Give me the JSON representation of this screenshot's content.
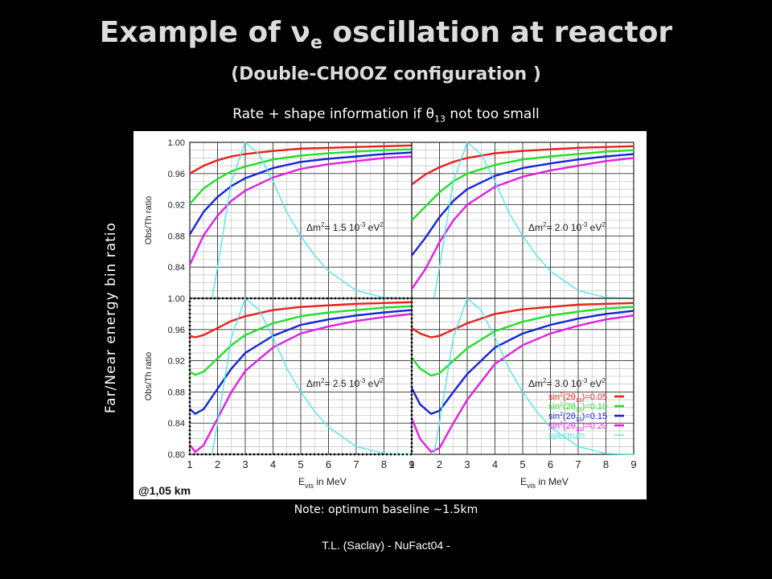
{
  "slide": {
    "title_pre": "Example of ",
    "title_nu": "ν",
    "title_sub": "e",
    "title_post": " oscillation at reactor",
    "subtitle": "(Double-CHOOZ configuration )",
    "rate_pre": "Rate + shape information if ",
    "rate_theta": "θ",
    "rate_sub": "13",
    "rate_post": " not too small",
    "side_label": "Far/Near energy bin ratio",
    "note": "Note: optimum baseline ~1.5km",
    "footer": "T.L. (Saclay) - NuFact04 -"
  },
  "colors": {
    "background": "#000000",
    "series_red": "#e8201c",
    "series_green": "#22e02a",
    "series_blue": "#1525d8",
    "series_magenta": "#e020e0",
    "spectrum": "#4fe6ea"
  },
  "chart_data": {
    "type": "line",
    "ylabel": "Obs/Th ratio",
    "xlabel_main": "E",
    "xlabel_sub": "vis",
    "xlabel_post": " in MeV",
    "xlim": [
      1,
      9
    ],
    "ylim": [
      0.8,
      1.0
    ],
    "yticks": [
      "0.80",
      "0.84",
      "0.88",
      "0.92",
      "0.96",
      "1.00"
    ],
    "xticks": [
      "1",
      "2",
      "3",
      "4",
      "5",
      "6",
      "7",
      "8",
      "9"
    ],
    "baseline_label": "@1,05 km",
    "legend": [
      {
        "pre": "sin",
        "sup": "2",
        "mid": "(2θ",
        "sub": "13",
        "post": ")=0.05",
        "color": "#e8201c"
      },
      {
        "pre": "sin",
        "sup": "2",
        "mid": "(2θ",
        "sub": "13",
        "post": ")=0.10",
        "color": "#22e02a"
      },
      {
        "pre": "sin",
        "sup": "2",
        "mid": "(2θ",
        "sub": "13",
        "post": ")=0.15",
        "color": "#1525d8"
      },
      {
        "pre": "sin",
        "sup": "2",
        "mid": "(2θ",
        "sub": "13",
        "post": ")=0.20",
        "color": "#e020e0"
      },
      {
        "pre": "spectrum",
        "sup": "",
        "mid": "",
        "sub": "",
        "post": "",
        "color": "#4fe6ea"
      }
    ],
    "panels": [
      {
        "dm_label": {
          "pre": "Δm",
          "sup1": "2",
          "mid": "= 1.5 10",
          "sup2": "-3",
          "post": " eV",
          "sup3": "2"
        },
        "series": [
          {
            "color": "#e8201c",
            "x": [
              1.0,
              1.5,
              2.0,
              2.5,
              3.0,
              4.0,
              5.0,
              6.0,
              7.0,
              8.0,
              9.0
            ],
            "y": [
              0.96,
              0.97,
              0.977,
              0.982,
              0.985,
              0.989,
              0.992,
              0.993,
              0.994,
              0.995,
              0.996
            ]
          },
          {
            "color": "#22e02a",
            "x": [
              1.0,
              1.5,
              2.0,
              2.5,
              3.0,
              4.0,
              5.0,
              6.0,
              7.0,
              8.0,
              9.0
            ],
            "y": [
              0.921,
              0.941,
              0.953,
              0.963,
              0.969,
              0.978,
              0.983,
              0.986,
              0.988,
              0.99,
              0.991
            ]
          },
          {
            "color": "#1525d8",
            "x": [
              1.0,
              1.5,
              2.0,
              2.5,
              3.0,
              4.0,
              5.0,
              6.0,
              7.0,
              8.0,
              9.0
            ],
            "y": [
              0.882,
              0.911,
              0.93,
              0.944,
              0.954,
              0.967,
              0.975,
              0.979,
              0.982,
              0.985,
              0.987
            ]
          },
          {
            "color": "#e020e0",
            "x": [
              1.0,
              1.5,
              2.0,
              2.5,
              3.0,
              4.0,
              5.0,
              6.0,
              7.0,
              8.0,
              9.0
            ],
            "y": [
              0.843,
              0.881,
              0.906,
              0.925,
              0.938,
              0.955,
              0.966,
              0.972,
              0.976,
              0.98,
              0.982
            ]
          },
          {
            "color": "#4fe6ea",
            "x": [
              1.8,
              2.0,
              2.5,
              3.0,
              3.5,
              4.0,
              4.5,
              5.0,
              5.5,
              6.0,
              7.0,
              8.0,
              9.0
            ],
            "y": [
              0.8,
              0.84,
              0.95,
              1.0,
              0.985,
              0.95,
              0.91,
              0.88,
              0.855,
              0.835,
              0.81,
              0.801,
              0.8
            ]
          }
        ]
      },
      {
        "dm_label": {
          "pre": "Δm",
          "sup1": "2",
          "mid": "= 2.0 10",
          "sup2": "-3",
          "post": " eV",
          "sup3": "2"
        },
        "series": [
          {
            "color": "#e8201c",
            "x": [
              1.0,
              1.5,
              2.0,
              2.5,
              3.0,
              4.0,
              5.0,
              6.0,
              7.0,
              8.0,
              9.0
            ],
            "y": [
              0.946,
              0.959,
              0.968,
              0.975,
              0.98,
              0.986,
              0.989,
              0.991,
              0.993,
              0.994,
              0.995
            ]
          },
          {
            "color": "#22e02a",
            "x": [
              1.0,
              1.5,
              2.0,
              2.5,
              3.0,
              4.0,
              5.0,
              6.0,
              7.0,
              8.0,
              9.0
            ],
            "y": [
              0.9,
              0.918,
              0.936,
              0.95,
              0.96,
              0.971,
              0.978,
              0.982,
              0.985,
              0.988,
              0.99
            ]
          },
          {
            "color": "#1525d8",
            "x": [
              1.0,
              1.5,
              2.0,
              2.5,
              3.0,
              4.0,
              5.0,
              6.0,
              7.0,
              8.0,
              9.0
            ],
            "y": [
              0.855,
              0.878,
              0.904,
              0.925,
              0.94,
              0.957,
              0.967,
              0.973,
              0.978,
              0.982,
              0.985
            ]
          },
          {
            "color": "#e020e0",
            "x": [
              1.0,
              1.5,
              2.0,
              2.5,
              3.0,
              4.0,
              5.0,
              6.0,
              7.0,
              8.0,
              9.0
            ],
            "y": [
              0.812,
              0.838,
              0.872,
              0.9,
              0.92,
              0.943,
              0.956,
              0.964,
              0.97,
              0.976,
              0.98
            ]
          },
          {
            "color": "#4fe6ea",
            "x": [
              1.8,
              2.0,
              2.5,
              3.0,
              3.5,
              4.0,
              4.5,
              5.0,
              5.5,
              6.0,
              7.0,
              8.0,
              9.0
            ],
            "y": [
              0.8,
              0.84,
              0.95,
              1.0,
              0.985,
              0.95,
              0.91,
              0.88,
              0.855,
              0.835,
              0.81,
              0.801,
              0.8
            ]
          }
        ]
      },
      {
        "dm_label": {
          "pre": "Δm",
          "sup1": "2",
          "mid": "= 2.5 10",
          "sup2": "-3",
          "post": " eV",
          "sup3": "2"
        },
        "series": [
          {
            "color": "#e8201c",
            "x": [
              1.0,
              1.2,
              1.5,
              2.0,
              2.5,
              3.0,
              4.0,
              5.0,
              6.0,
              7.0,
              8.0,
              9.0
            ],
            "y": [
              0.952,
              0.95,
              0.953,
              0.962,
              0.971,
              0.977,
              0.985,
              0.989,
              0.991,
              0.993,
              0.994,
              0.995
            ]
          },
          {
            "color": "#22e02a",
            "x": [
              1.0,
              1.2,
              1.5,
              2.0,
              2.5,
              3.0,
              4.0,
              5.0,
              6.0,
              7.0,
              8.0,
              9.0
            ],
            "y": [
              0.906,
              0.902,
              0.906,
              0.923,
              0.94,
              0.953,
              0.968,
              0.977,
              0.982,
              0.985,
              0.988,
              0.99
            ]
          },
          {
            "color": "#1525d8",
            "x": [
              1.0,
              1.2,
              1.5,
              2.0,
              2.5,
              3.0,
              4.0,
              5.0,
              6.0,
              7.0,
              8.0,
              9.0
            ],
            "y": [
              0.858,
              0.852,
              0.858,
              0.884,
              0.91,
              0.93,
              0.952,
              0.966,
              0.973,
              0.978,
              0.982,
              0.985
            ]
          },
          {
            "color": "#e020e0",
            "x": [
              1.0,
              1.2,
              1.5,
              2.0,
              2.5,
              3.0,
              4.0,
              5.0,
              6.0,
              7.0,
              8.0,
              9.0
            ],
            "y": [
              0.812,
              0.803,
              0.812,
              0.846,
              0.88,
              0.907,
              0.937,
              0.955,
              0.964,
              0.971,
              0.976,
              0.98
            ]
          },
          {
            "color": "#4fe6ea",
            "x": [
              1.8,
              2.0,
              2.5,
              3.0,
              3.5,
              4.0,
              4.5,
              5.0,
              5.5,
              6.0,
              7.0,
              8.0,
              9.0
            ],
            "y": [
              0.8,
              0.84,
              0.95,
              1.0,
              0.985,
              0.95,
              0.91,
              0.88,
              0.855,
              0.835,
              0.81,
              0.801,
              0.8
            ]
          }
        ]
      },
      {
        "dm_label": {
          "pre": "Δm",
          "sup1": "2",
          "mid": "= 3.0 10",
          "sup2": "-3",
          "post": " eV",
          "sup3": "2"
        },
        "series": [
          {
            "color": "#e8201c",
            "x": [
              1.0,
              1.3,
              1.7,
              2.0,
              2.5,
              3.0,
              4.0,
              5.0,
              6.0,
              7.0,
              8.0,
              9.0
            ],
            "y": [
              0.962,
              0.955,
              0.95,
              0.952,
              0.96,
              0.968,
              0.98,
              0.986,
              0.989,
              0.992,
              0.993,
              0.994
            ]
          },
          {
            "color": "#22e02a",
            "x": [
              1.0,
              1.3,
              1.7,
              2.0,
              2.5,
              3.0,
              4.0,
              5.0,
              6.0,
              7.0,
              8.0,
              9.0
            ],
            "y": [
              0.924,
              0.91,
              0.901,
              0.904,
              0.92,
              0.936,
              0.958,
              0.97,
              0.978,
              0.983,
              0.987,
              0.989
            ]
          },
          {
            "color": "#1525d8",
            "x": [
              1.0,
              1.3,
              1.7,
              2.0,
              2.5,
              3.0,
              4.0,
              5.0,
              6.0,
              7.0,
              8.0,
              9.0
            ],
            "y": [
              0.885,
              0.864,
              0.852,
              0.856,
              0.88,
              0.903,
              0.937,
              0.955,
              0.966,
              0.974,
              0.98,
              0.984
            ]
          },
          {
            "color": "#e020e0",
            "x": [
              1.0,
              1.3,
              1.7,
              2.0,
              2.5,
              3.0,
              4.0,
              5.0,
              6.0,
              7.0,
              8.0,
              9.0
            ],
            "y": [
              0.846,
              0.82,
              0.803,
              0.808,
              0.84,
              0.87,
              0.916,
              0.94,
              0.955,
              0.965,
              0.973,
              0.978
            ]
          },
          {
            "color": "#4fe6ea",
            "x": [
              1.8,
              2.0,
              2.5,
              3.0,
              3.5,
              4.0,
              4.5,
              5.0,
              5.5,
              6.0,
              7.0,
              8.0,
              9.0
            ],
            "y": [
              0.8,
              0.84,
              0.95,
              1.0,
              0.985,
              0.95,
              0.91,
              0.88,
              0.855,
              0.835,
              0.81,
              0.801,
              0.8
            ]
          }
        ]
      }
    ]
  }
}
